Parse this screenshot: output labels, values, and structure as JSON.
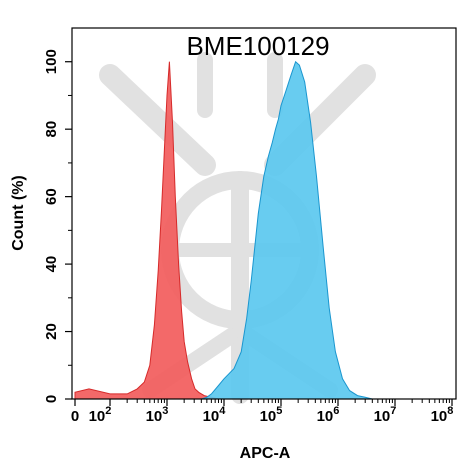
{
  "chart_data": {
    "type": "area",
    "title": "BME100129",
    "xlabel": "APC-A",
    "ylabel": "Count  (%)",
    "xscale": "biexponential",
    "xlim": [
      0,
      100000000
    ],
    "ylim": [
      0,
      110
    ],
    "grid": false,
    "legend": "none",
    "x_tick_labels": [
      {
        "value": 0,
        "base": "0",
        "exp": ""
      },
      {
        "value": 100,
        "base": "10",
        "exp": "2"
      },
      {
        "value": 1000,
        "base": "10",
        "exp": "3"
      },
      {
        "value": 10000,
        "base": "10",
        "exp": "4"
      },
      {
        "value": 100000,
        "base": "10",
        "exp": "5"
      },
      {
        "value": 1000000,
        "base": "10",
        "exp": "6"
      },
      {
        "value": 10000000,
        "base": "10",
        "exp": "7"
      },
      {
        "value": 100000000,
        "base": "10",
        "exp": "8"
      }
    ],
    "y_tick_labels": [
      "0",
      "20",
      "40",
      "60",
      "80",
      "100"
    ],
    "y_ticks": [
      0,
      20,
      40,
      60,
      80,
      100
    ],
    "series": [
      {
        "color": "#f25c5c",
        "points": [
          [
            0,
            2
          ],
          [
            40,
            3
          ],
          [
            100,
            1.5
          ],
          [
            200,
            1.5
          ],
          [
            300,
            3
          ],
          [
            400,
            5
          ],
          [
            500,
            10
          ],
          [
            600,
            22
          ],
          [
            700,
            38
          ],
          [
            800,
            56
          ],
          [
            900,
            74
          ],
          [
            1000,
            90
          ],
          [
            1100,
            100
          ],
          [
            1250,
            82
          ],
          [
            1400,
            60
          ],
          [
            1600,
            40
          ],
          [
            1800,
            26
          ],
          [
            2000,
            17
          ],
          [
            2300,
            11
          ],
          [
            2700,
            6
          ],
          [
            3100,
            3
          ],
          [
            3600,
            2
          ],
          [
            4500,
            1
          ],
          [
            6000,
            0.5
          ],
          [
            8000,
            0
          ]
        ]
      },
      {
        "color": "#5bc8ef",
        "points": [
          [
            4000,
            0
          ],
          [
            5000,
            0.5
          ],
          [
            6000,
            1.5
          ],
          [
            8000,
            4
          ],
          [
            10000,
            6
          ],
          [
            15000,
            9
          ],
          [
            20000,
            14
          ],
          [
            25000,
            24
          ],
          [
            30000,
            35
          ],
          [
            40000,
            55
          ],
          [
            50000,
            66
          ],
          [
            60000,
            72
          ],
          [
            70000,
            76
          ],
          [
            80000,
            80
          ],
          [
            90000,
            83
          ],
          [
            100000,
            87
          ],
          [
            120000,
            91
          ],
          [
            150000,
            96
          ],
          [
            180000,
            100
          ],
          [
            210000,
            99
          ],
          [
            260000,
            94
          ],
          [
            330000,
            82
          ],
          [
            420000,
            66
          ],
          [
            550000,
            45
          ],
          [
            700000,
            27
          ],
          [
            900000,
            14
          ],
          [
            1200000,
            6
          ],
          [
            1600000,
            2.5
          ],
          [
            2200000,
            1
          ],
          [
            3000000,
            0.5
          ],
          [
            4000000,
            0
          ]
        ]
      }
    ]
  },
  "colors": {
    "red_fill": "#f25c5c",
    "red_stroke": "#d62a2a",
    "blue_fill": "#5bc8ef",
    "blue_stroke": "#1a96cf",
    "watermark": "#c9c9c9"
  }
}
